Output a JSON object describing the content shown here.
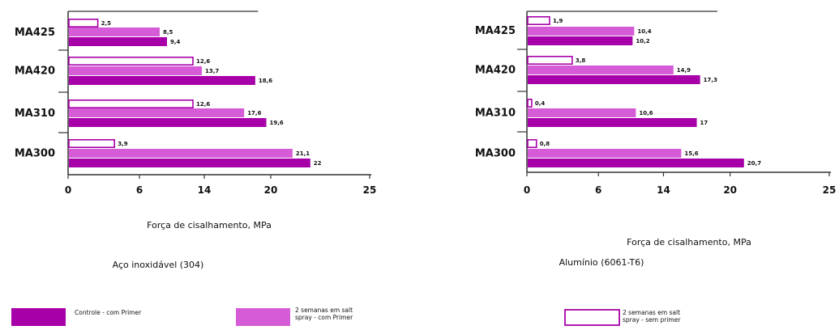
{
  "colors": {
    "controle": "#a800a8",
    "primer": "#d65bd6",
    "sem_primer_fill": "#ffffff",
    "sem_primer_stroke": "#a800a8",
    "axis": "#333333"
  },
  "chart_data": [
    {
      "type": "bar",
      "orientation": "horizontal",
      "title": "Aço inoxidável (304)",
      "xlabel": "Força de cisalhamento, MPa",
      "categories": [
        "MA425",
        "MA420",
        "MA310",
        "MA300"
      ],
      "x_tick_labels": [
        "0",
        "6",
        "14",
        "20",
        "25"
      ],
      "series": [
        {
          "name": "2 semanas em salt spray - sem primer",
          "values": [
            2.5,
            12.6,
            12.6,
            3.9
          ],
          "labels": [
            "2,5",
            "12,6",
            "12,6",
            "3,9"
          ]
        },
        {
          "name": "2 semanas em salt spray - com Primer",
          "values": [
            8.5,
            13.7,
            17.6,
            21.1
          ],
          "labels": [
            "8,5",
            "13,7",
            "17,6",
            "21,1"
          ]
        },
        {
          "name": "Controle - com Primer",
          "values": [
            9.4,
            18.6,
            19.6,
            22
          ],
          "labels": [
            "9,4",
            "18,6",
            "19,6",
            "22"
          ]
        }
      ]
    },
    {
      "type": "bar",
      "orientation": "horizontal",
      "title": "Alumínio (6061-T6)",
      "xlabel": "Força de cisalhamento, MPa",
      "categories": [
        "MA425",
        "MA420",
        "MA310",
        "MA300"
      ],
      "x_tick_labels": [
        "0",
        "6",
        "14",
        "20",
        "25"
      ],
      "series": [
        {
          "name": "2 semanas em salt spray - sem primer",
          "values": [
            1.9,
            3.8,
            0.4,
            0.8
          ],
          "labels": [
            "1,9",
            "3,8",
            "0,4",
            "0,8"
          ]
        },
        {
          "name": "2 semanas em salt spray - com Primer",
          "values": [
            10.4,
            14.9,
            10.6,
            15.6
          ],
          "labels": [
            "10,4",
            "14,9",
            "10,6",
            "15,6"
          ]
        },
        {
          "name": "Controle - com Primer",
          "values": [
            10.2,
            17.3,
            17,
            20.7
          ],
          "labels": [
            "10,2",
            "17,3",
            "17",
            "20,7"
          ]
        }
      ]
    }
  ],
  "legend": [
    {
      "key": "controle",
      "lines": [
        "Controle - com Primer"
      ]
    },
    {
      "key": "primer",
      "lines": [
        "2 semanas em salt",
        "spray - com Primer"
      ]
    },
    {
      "key": "sem_primer",
      "lines": [
        "2 semanas em salt",
        "spray - sem primer"
      ]
    }
  ]
}
